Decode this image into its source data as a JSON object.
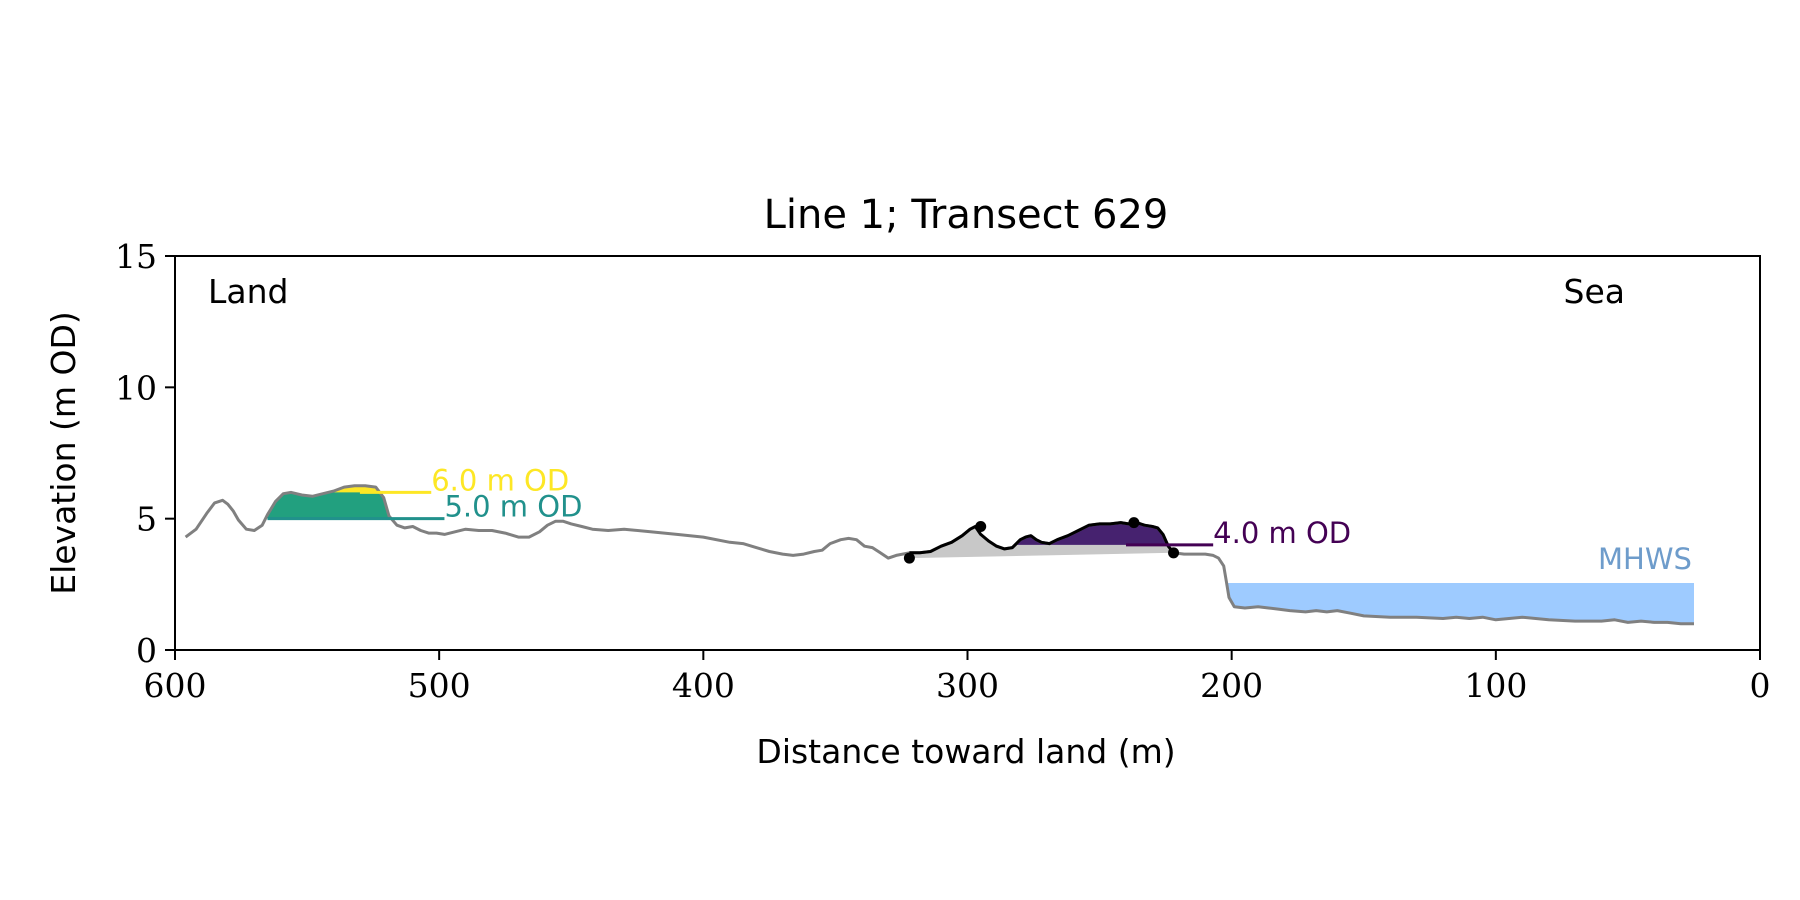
{
  "chart_data": {
    "type": "line",
    "title": "Line 1; Transect 629",
    "xlabel": "Distance toward land (m)",
    "ylabel": "Elevation (m OD)",
    "xlim": [
      600,
      0
    ],
    "ylim": [
      0,
      15
    ],
    "xticks": [
      600,
      500,
      400,
      300,
      200,
      100,
      0
    ],
    "yticks": [
      0,
      5,
      10,
      15
    ],
    "grid": false,
    "corner_labels": {
      "left": "Land",
      "right": "Sea"
    },
    "colors": {
      "profile": "#808080",
      "dune_outline": "#000000",
      "level_6": "#fde725",
      "level_5": "#21918c",
      "level_4": "#440154",
      "level_5_fill": "#22a07f",
      "level_4_fill": "#46226f",
      "dune_base_fill": "#c8c8c8",
      "mhws_fill": "#9ecbff",
      "mhws_text": "#6e9ccb"
    },
    "profile": {
      "x": [
        596,
        592,
        588,
        585,
        582,
        580,
        578,
        576,
        573,
        570,
        567,
        565,
        562,
        559,
        556,
        552,
        548,
        544,
        540,
        536,
        532,
        528,
        524,
        521,
        519,
        516,
        513,
        510,
        507,
        504,
        501,
        498,
        494,
        490,
        485,
        480,
        475,
        470,
        466,
        462,
        459,
        456,
        453,
        450,
        446,
        442,
        436,
        430,
        420,
        410,
        400,
        390,
        385,
        380,
        375,
        370,
        366,
        362,
        358,
        355,
        352,
        348,
        345,
        342,
        339,
        336,
        333,
        330,
        327,
        322,
        318,
        314,
        310,
        306,
        302,
        299,
        297,
        295,
        292,
        289,
        286,
        283,
        280,
        278,
        276,
        274,
        272,
        269,
        266,
        262,
        258,
        254,
        250,
        246,
        242,
        239,
        236,
        233,
        230,
        228,
        226,
        224,
        222,
        218,
        214,
        210,
        207,
        205,
        203,
        202,
        201,
        199,
        195,
        190,
        186,
        182,
        178,
        172,
        168,
        164,
        160,
        155,
        150,
        140,
        130,
        120,
        115,
        110,
        105,
        100,
        90,
        80,
        70,
        65,
        60,
        55,
        50,
        45,
        40,
        35,
        30,
        25
      ],
      "y": [
        4.3,
        4.6,
        5.2,
        5.6,
        5.7,
        5.55,
        5.3,
        4.95,
        4.6,
        4.55,
        4.75,
        5.15,
        5.65,
        5.95,
        6.0,
        5.9,
        5.85,
        5.95,
        6.05,
        6.2,
        6.25,
        6.25,
        6.2,
        5.8,
        5.1,
        4.75,
        4.65,
        4.7,
        4.55,
        4.45,
        4.45,
        4.4,
        4.5,
        4.6,
        4.55,
        4.55,
        4.45,
        4.3,
        4.3,
        4.5,
        4.75,
        4.9,
        4.9,
        4.8,
        4.7,
        4.6,
        4.55,
        4.6,
        4.5,
        4.4,
        4.3,
        4.1,
        4.05,
        3.9,
        3.75,
        3.65,
        3.6,
        3.65,
        3.75,
        3.8,
        4.05,
        4.2,
        4.25,
        4.2,
        3.95,
        3.9,
        3.7,
        3.5,
        3.6,
        3.7,
        3.7,
        3.75,
        3.95,
        4.1,
        4.35,
        4.6,
        4.7,
        4.4,
        4.15,
        3.95,
        3.85,
        3.9,
        4.2,
        4.3,
        4.35,
        4.2,
        4.1,
        4.05,
        4.2,
        4.35,
        4.55,
        4.75,
        4.8,
        4.8,
        4.85,
        4.8,
        4.85,
        4.75,
        4.7,
        4.65,
        4.4,
        3.95,
        3.7,
        3.65,
        3.65,
        3.65,
        3.6,
        3.5,
        3.2,
        2.6,
        2.0,
        1.65,
        1.6,
        1.65,
        1.6,
        1.55,
        1.5,
        1.45,
        1.5,
        1.45,
        1.5,
        1.4,
        1.3,
        1.25,
        1.25,
        1.2,
        1.25,
        1.2,
        1.25,
        1.15,
        1.25,
        1.15,
        1.1,
        1.1,
        1.1,
        1.15,
        1.05,
        1.1,
        1.05,
        1.05,
        1.0,
        1.0
      ]
    },
    "dune_crest": {
      "x": [
        322,
        295,
        237,
        222
      ],
      "y": [
        3.5,
        4.7,
        4.85,
        3.7
      ]
    },
    "levels": [
      {
        "name": "6.0 m OD",
        "elevation": 6.0,
        "line_x": [
          530,
          503
        ],
        "text_x": 503
      },
      {
        "name": "5.0 m OD",
        "elevation": 5.0,
        "line_x": [
          565,
          498
        ],
        "text_x": 498
      },
      {
        "name": "4.0 m OD",
        "elevation": 4.0,
        "line_x": [
          240,
          207
        ],
        "text_x": 207
      }
    ],
    "mhws": {
      "label": "MHWS",
      "elevation": 2.55,
      "x_range": [
        202,
        25
      ]
    }
  }
}
